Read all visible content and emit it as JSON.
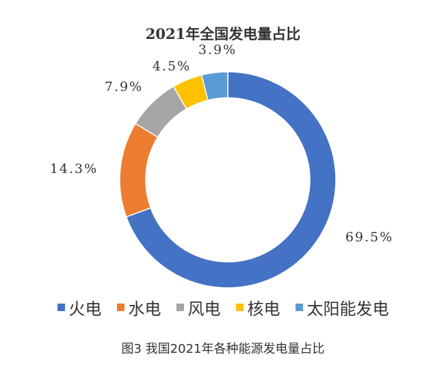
{
  "chart_data": {
    "type": "pie",
    "title": "2021年全国发电量占比",
    "categories": [
      "火电",
      "水电",
      "风电",
      "核电",
      "太阳能发电"
    ],
    "values": [
      69.5,
      14.3,
      7.9,
      4.5,
      3.9
    ],
    "labels": [
      "69.5%",
      "14.3%",
      "7.9%",
      "4.5%",
      "3.9%"
    ],
    "colors": [
      "#4472C4",
      "#ED7D31",
      "#A5A5A5",
      "#FFC000",
      "#5B9BD5"
    ],
    "legend_position": "bottom"
  },
  "caption": "图3  我国2021年各种能源发电量占比"
}
